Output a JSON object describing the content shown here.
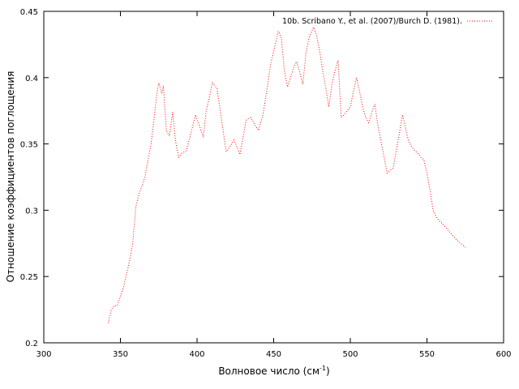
{
  "chart_data": {
    "type": "line",
    "title": "",
    "xlabel": "Волновое число (см",
    "xlabel_sup": "-1",
    "xlabel_end": ")",
    "ylabel": "Отношение коэффициентов поглощения",
    "xlim": [
      300,
      600
    ],
    "ylim": [
      0.2,
      0.45
    ],
    "x_ticks": [
      "300",
      "350",
      "400",
      "450",
      "500",
      "550",
      "600"
    ],
    "y_ticks": [
      "0.2",
      "0.25",
      "0.3",
      "0.35",
      "0.4",
      "0.45"
    ],
    "grid": false,
    "legend_position": "top-right",
    "series": [
      {
        "name": "10b. Scribano Y., et al. (2007)/Burch D. (1981).",
        "color": "#ff0000",
        "style": "dotted",
        "points": [
          [
            342,
            0.215
          ],
          [
            344,
            0.225
          ],
          [
            346,
            0.228
          ],
          [
            348,
            0.228
          ],
          [
            350,
            0.235
          ],
          [
            352,
            0.242
          ],
          [
            354,
            0.252
          ],
          [
            356,
            0.262
          ],
          [
            358,
            0.275
          ],
          [
            360,
            0.302
          ],
          [
            362,
            0.312
          ],
          [
            364,
            0.318
          ],
          [
            366,
            0.325
          ],
          [
            368,
            0.338
          ],
          [
            370,
            0.35
          ],
          [
            372,
            0.37
          ],
          [
            374,
            0.39
          ],
          [
            375,
            0.396
          ],
          [
            377,
            0.388
          ],
          [
            378,
            0.394
          ],
          [
            380,
            0.36
          ],
          [
            382,
            0.356
          ],
          [
            384,
            0.374
          ],
          [
            386,
            0.352
          ],
          [
            388,
            0.34
          ],
          [
            390,
            0.343
          ],
          [
            393,
            0.345
          ],
          [
            396,
            0.358
          ],
          [
            399,
            0.372
          ],
          [
            402,
            0.362
          ],
          [
            404,
            0.355
          ],
          [
            406,
            0.375
          ],
          [
            408,
            0.385
          ],
          [
            410,
            0.396
          ],
          [
            413,
            0.392
          ],
          [
            416,
            0.368
          ],
          [
            419,
            0.344
          ],
          [
            422,
            0.349
          ],
          [
            424,
            0.353
          ],
          [
            426,
            0.348
          ],
          [
            428,
            0.342
          ],
          [
            430,
            0.355
          ],
          [
            432,
            0.368
          ],
          [
            435,
            0.37
          ],
          [
            437,
            0.366
          ],
          [
            440,
            0.36
          ],
          [
            443,
            0.372
          ],
          [
            446,
            0.394
          ],
          [
            448,
            0.41
          ],
          [
            450,
            0.42
          ],
          [
            453,
            0.435
          ],
          [
            455,
            0.43
          ],
          [
            457,
            0.405
          ],
          [
            459,
            0.393
          ],
          [
            461,
            0.4
          ],
          [
            463,
            0.408
          ],
          [
            465,
            0.412
          ],
          [
            467,
            0.404
          ],
          [
            469,
            0.395
          ],
          [
            471,
            0.418
          ],
          [
            473,
            0.43
          ],
          [
            476,
            0.438
          ],
          [
            478,
            0.432
          ],
          [
            480,
            0.42
          ],
          [
            482,
            0.405
          ],
          [
            484,
            0.392
          ],
          [
            486,
            0.378
          ],
          [
            488,
            0.395
          ],
          [
            490,
            0.405
          ],
          [
            492,
            0.413
          ],
          [
            494,
            0.37
          ],
          [
            496,
            0.372
          ],
          [
            498,
            0.375
          ],
          [
            500,
            0.378
          ],
          [
            502,
            0.39
          ],
          [
            504,
            0.4
          ],
          [
            506,
            0.39
          ],
          [
            508,
            0.378
          ],
          [
            510,
            0.37
          ],
          [
            512,
            0.366
          ],
          [
            514,
            0.374
          ],
          [
            516,
            0.38
          ],
          [
            518,
            0.364
          ],
          [
            520,
            0.352
          ],
          [
            522,
            0.34
          ],
          [
            524,
            0.328
          ],
          [
            526,
            0.33
          ],
          [
            528,
            0.332
          ],
          [
            530,
            0.345
          ],
          [
            532,
            0.358
          ],
          [
            534,
            0.372
          ],
          [
            536,
            0.362
          ],
          [
            538,
            0.352
          ],
          [
            540,
            0.348
          ],
          [
            542,
            0.345
          ],
          [
            544,
            0.343
          ],
          [
            546,
            0.34
          ],
          [
            548,
            0.338
          ],
          [
            550,
            0.328
          ],
          [
            552,
            0.315
          ],
          [
            554,
            0.3
          ],
          [
            556,
            0.295
          ],
          [
            558,
            0.292
          ],
          [
            560,
            0.29
          ],
          [
            563,
            0.286
          ],
          [
            566,
            0.282
          ],
          [
            569,
            0.278
          ],
          [
            572,
            0.275
          ],
          [
            575,
            0.272
          ]
        ]
      }
    ]
  }
}
